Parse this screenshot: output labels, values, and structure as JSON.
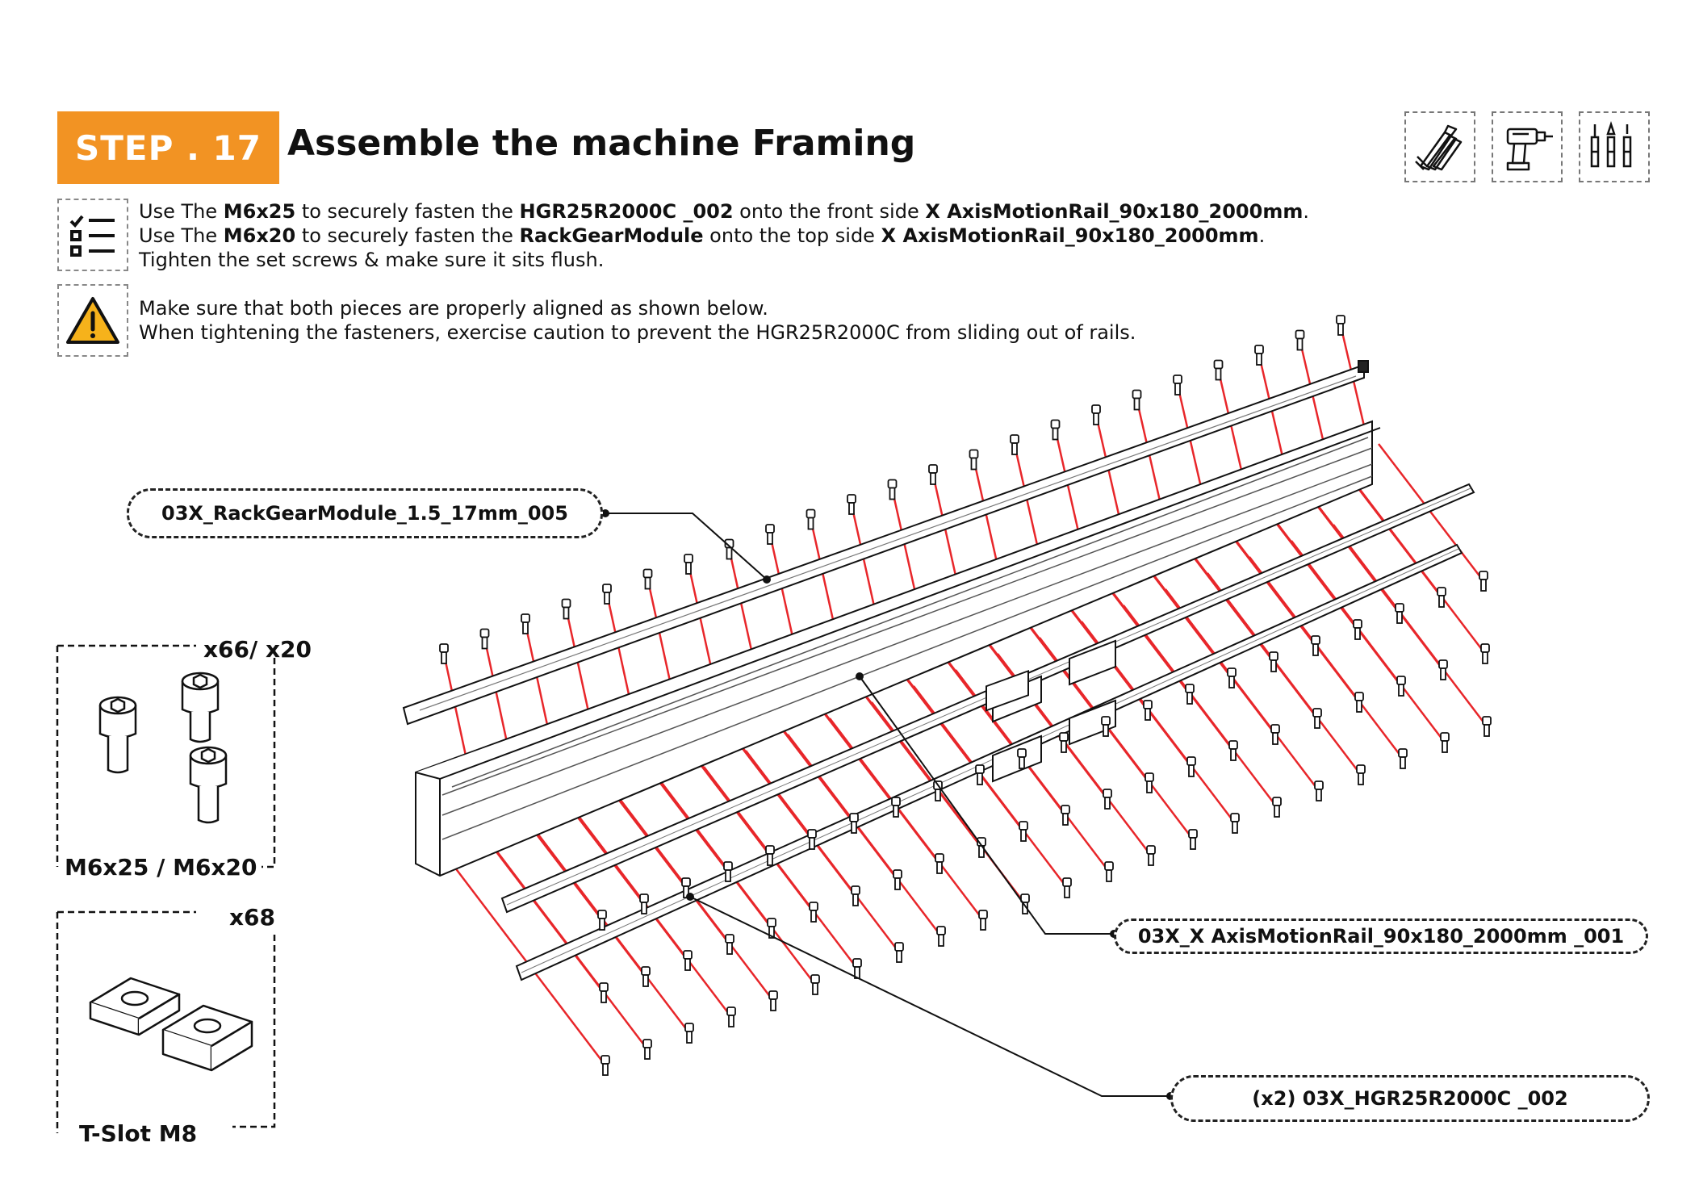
{
  "header": {
    "step_label": "STEP . 17",
    "title": "Assemble the machine Framing"
  },
  "tools": [
    {
      "icon": "allen-key-set-icon"
    },
    {
      "icon": "power-drill-icon"
    },
    {
      "icon": "screwdriver-bits-icon"
    }
  ],
  "instructions": {
    "icon": "checklist-icon",
    "line1": {
      "a": "Use The ",
      "b": "M6x25",
      "c": " to securely fasten the ",
      "d": "HGR25R2000C _002",
      "e": "  onto the front side ",
      "f": "X AxisMotionRail_90x180_2000mm",
      "g": "."
    },
    "line2": {
      "a": "Use The ",
      "b": "M6x20",
      "c": " to securely fasten the ",
      "d": "RackGearModule",
      "e": "  onto the top side ",
      "f": "X AxisMotionRail_90x180_2000mm",
      "g": "."
    },
    "line3": "Tighten the set screws & make sure it sits flush."
  },
  "warning": {
    "icon": "warning-triangle-icon",
    "line1": "Make sure that both pieces are properly aligned as shown below.",
    "line2": "When tightening the fasteners, exercise caution to prevent the HGR25R2000C   from sliding out of rails."
  },
  "parts": {
    "screws": {
      "quantity": "x66/ x20",
      "name": "M6x25 / M6x20",
      "icon": "socket-head-screw-icon"
    },
    "tslot": {
      "quantity": "x68",
      "name": "T-Slot M8",
      "icon": "t-slot-nut-icon"
    }
  },
  "callouts": {
    "rack": "03X_RackGearModule_1.5_17mm_005",
    "rail": "03X_X AxisMotionRail_90x180_2000mm _001",
    "hgr": "(x2) 03X_HGR25R2000C _002"
  },
  "colors": {
    "accent": "#f29323",
    "exploded_lines": "#e8262a",
    "text": "#111111"
  }
}
